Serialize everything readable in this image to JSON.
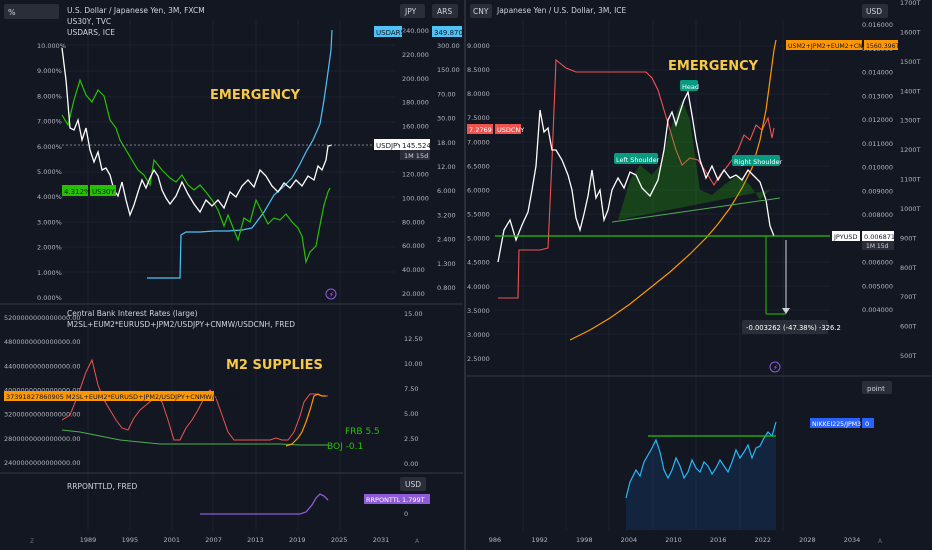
{
  "colors": {
    "bg": "#131722",
    "grid": "#1e222d",
    "axis": "#b2b5be",
    "white": "#ffffff",
    "green": "#26c200",
    "cyan": "#4fc3f7",
    "red": "#ef5350",
    "orange": "#ff9800",
    "yellow": "#f7c948",
    "purple": "#8e5cd9",
    "neon": "#4caf50",
    "blue": "#2962ff",
    "gold": "#f2c94c"
  },
  "left_top": {
    "title": "U.S. Dollar / Japanese Yen, 3M, FXCM",
    "legend_1": "US30Y, TVC",
    "legend_2": "USDARS, ICE",
    "unit_btn": "%",
    "btn_jpy": "JPY",
    "btn_ars": "ARS",
    "annotation": "EMERGENCY",
    "us30y_tag": "4.312%",
    "us30y_label": "US30Y",
    "usdars_label": "USDARS",
    "usdars_value": "349.870",
    "usdjpy_label": "USDJPY",
    "usdjpy_value": "145.524",
    "usdjpy_time": "1M 15d",
    "pct_ticks": [
      "10.000%",
      "9.000%",
      "8.000%",
      "7.000%",
      "6.000%",
      "5.000%",
      "4.000%",
      "3.000%",
      "2.000%",
      "1.000%",
      "0.000%"
    ],
    "jpy_ticks": [
      "240.000",
      "220.000",
      "200.000",
      "180.000",
      "160.000",
      "140.000",
      "120.000",
      "100.000",
      "80.000",
      "60.000",
      "40.000",
      "20.000"
    ],
    "ars_ticks": [
      "300.00",
      "150.00",
      "70.00",
      "30.00",
      "18.00",
      "12.00",
      "6.000",
      "3.200",
      "2.400",
      "1.300",
      "0.800"
    ]
  },
  "left_mid": {
    "title": "Central Bank Interest Rates (large)",
    "legend": "M2SL+EUM2*EURUSD+JPM2/USDJPY+CNMW/USDCNH, FRED",
    "annotation": "M2 SUPPLIES",
    "value_tag": "37391827860905.07",
    "series_label": "M2SL+EUM2*EURUSD+JPM2/USDJPY+CNMW/USDCNH",
    "frb": "FRB 5.5",
    "boj": "BOJ  -0.1",
    "left_ticks": [
      "5200000000000000.00",
      "4800000000000000.00",
      "4400000000000000.00",
      "4000000000000000.00",
      "3200000000000000.00",
      "2800000000000000.00",
      "2400000000000000.00"
    ],
    "right_ticks": [
      "15.00",
      "12.50",
      "10.00",
      "7.50",
      "5.00",
      "2.50",
      "0.00"
    ]
  },
  "left_bot": {
    "legend": "RRPONTTLD, FRED",
    "btn_usd": "USD",
    "label": "RRPONTTLD",
    "value": "1.799T",
    "right_ticks": [
      "0"
    ],
    "x_ticks": [
      "1989",
      "1995",
      "2001",
      "2007",
      "2013",
      "2019",
      "2025",
      "2031"
    ]
  },
  "right_top": {
    "title": "Japanese Yen / U.S. Dollar, 3M, ICE",
    "btn_cny": "CNY",
    "btn_usd": "USD",
    "annotation": "EMERGENCY",
    "head": "Head",
    "left_shoulder": "Left Shoulder",
    "right_shoulder": "Right Shoulder",
    "usdcny_value": "7.2769",
    "usdcny_label": "USDCNY",
    "m2_label": "USM2+JPM2+EUM2+CNM2",
    "m2_value": "1560.396T",
    "jpyusd_label": "JPYUSD",
    "jpyusd_value": "0.006871",
    "jpyusd_time": "1M 15d",
    "measure": "-0.003262 (-47.38%) -326.2",
    "cny_ticks": [
      "9.0000",
      "8.5000",
      "8.0000",
      "7.5000",
      "7.0000",
      "6.5000",
      "6.0000",
      "5.5000",
      "5.0000",
      "4.5000",
      "4.0000",
      "3.5000",
      "3.0000",
      "2.5000"
    ],
    "usd_ticks": [
      "0.016000",
      "0.015000",
      "0.014000",
      "0.013000",
      "0.012000",
      "0.011000",
      "0.010000",
      "0.009000",
      "0.008000",
      "0.007000",
      "0.006000",
      "0.005000",
      "0.004000"
    ],
    "t_ticks": [
      "1700T",
      "1600T",
      "1500T",
      "1400T",
      "1300T",
      "1200T",
      "1100T",
      "1000T",
      "900T",
      "800T",
      "700T",
      "600T",
      "500T"
    ]
  },
  "right_bot": {
    "btn_point": "point",
    "label": "NIKKEI225/JPM3",
    "value": "0",
    "x_ticks": [
      "986",
      "1992",
      "1998",
      "2004",
      "2010",
      "2016",
      "2022",
      "2028",
      "2034"
    ]
  }
}
